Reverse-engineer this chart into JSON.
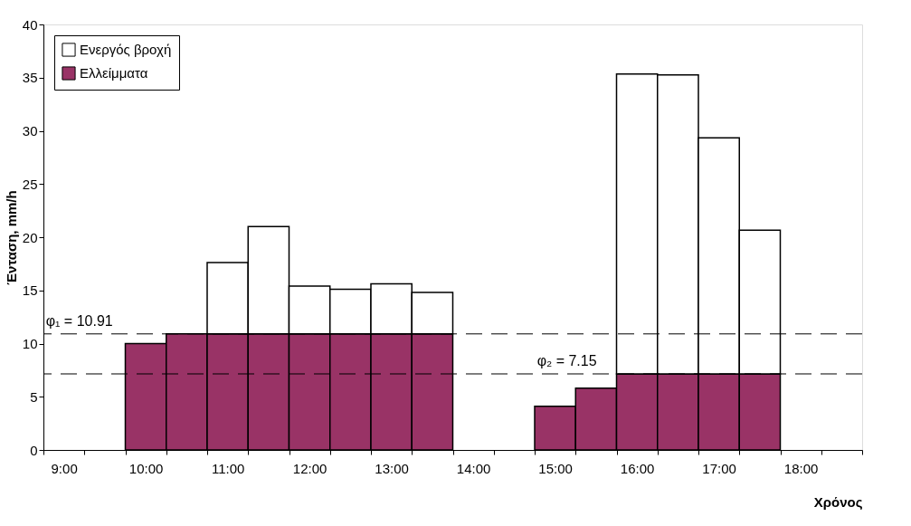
{
  "chart_data": {
    "type": "bar",
    "stacked": true,
    "xlabel": "Χρόνος",
    "ylabel": "Ένταση, mm/h",
    "categories": [
      "9:00",
      null,
      "10:00",
      null,
      "11:00",
      null,
      "12:00",
      null,
      "13:00",
      null,
      "14:00",
      null,
      "15:00",
      null,
      "16:00",
      null,
      "17:00",
      null,
      "18:00",
      null
    ],
    "series": [
      {
        "name": "Ελλείμματα",
        "color": "#993366",
        "values": [
          null,
          null,
          10.0,
          10.91,
          10.91,
          10.91,
          10.91,
          10.91,
          10.91,
          10.91,
          null,
          null,
          4.1,
          5.8,
          7.15,
          7.15,
          7.15,
          7.15,
          null,
          null
        ]
      },
      {
        "name": "Ενεργός βροχή",
        "color": "#ffffff",
        "values": [
          null,
          null,
          null,
          null,
          6.7,
          10.1,
          4.5,
          4.2,
          4.7,
          3.9,
          null,
          null,
          null,
          null,
          28.2,
          28.1,
          22.2,
          13.5,
          null,
          null
        ]
      }
    ],
    "ylim": [
      0,
      40
    ],
    "yticks": [
      0,
      5,
      10,
      15,
      20,
      25,
      30,
      35,
      40
    ],
    "ref_lines": [
      {
        "axis": "y",
        "value": 10.91,
        "label": "φ₁ = 10.91",
        "line_style": "dashed",
        "color": "#000000"
      },
      {
        "axis": "y",
        "value": 7.15,
        "label": "φ₂ = 7.15",
        "line_style": "dashed",
        "color": "#000000"
      }
    ],
    "legend": "top left",
    "grid": false
  }
}
